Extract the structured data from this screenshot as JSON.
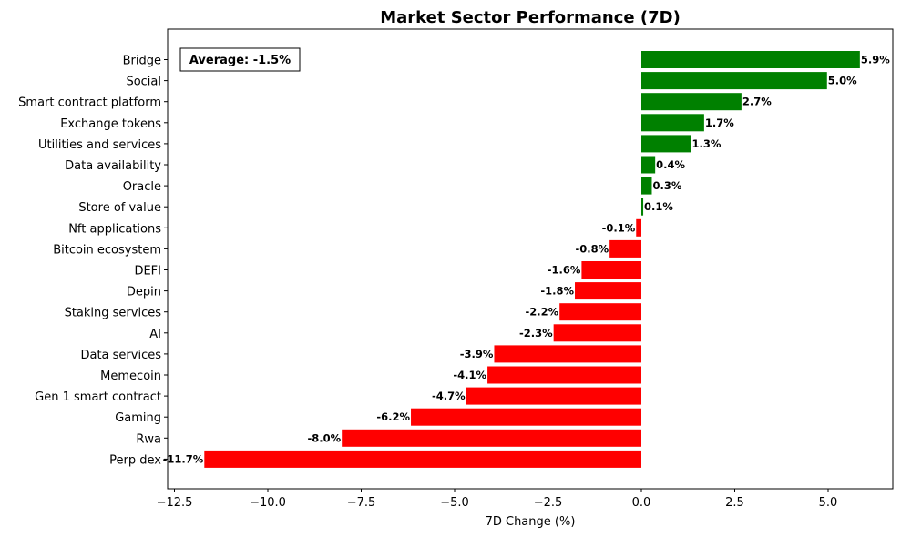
{
  "chart_data": {
    "type": "bar",
    "orientation": "horizontal",
    "title": "Market Sector Performance (7D)",
    "xlabel": "7D Change (%)",
    "ylabel": "",
    "annotation": "Average: -1.5%",
    "xlim": [
      -12.5,
      6.8
    ],
    "xticks": [
      -12.5,
      -10.0,
      -7.5,
      -5.0,
      -2.5,
      0.0,
      2.5,
      5.0
    ],
    "xtick_labels": [
      "−12.5",
      "−10.0",
      "−7.5",
      "−5.0",
      "−2.5",
      "0.0",
      "2.5",
      "5.0"
    ],
    "grid": false,
    "positive_color": "#008000",
    "negative_color": "#ff0000",
    "categories": [
      "Bridge",
      "Social",
      "Smart contract platform",
      "Exchange tokens",
      "Utilities and services",
      "Data availability",
      "Oracle",
      "Store of value",
      "Nft applications",
      "Bitcoin ecosystem",
      "DEFI",
      "Depin",
      "Staking services",
      "AI",
      "Data services",
      "Memecoin",
      "Gen 1 smart contract",
      "Gaming",
      "Rwa",
      "Perp dex"
    ],
    "values": [
      5.85,
      4.97,
      2.68,
      1.68,
      1.33,
      0.37,
      0.28,
      0.05,
      -0.14,
      -0.85,
      -1.6,
      -1.78,
      -2.19,
      -2.35,
      -3.94,
      -4.12,
      -4.69,
      -6.17,
      -8.02,
      -11.7
    ],
    "data_labels": [
      "5.9%",
      "5.0%",
      "2.7%",
      "1.7%",
      "1.3%",
      "0.4%",
      "0.3%",
      "0.1%",
      "-0.1%",
      "-0.8%",
      "-1.6%",
      "-1.8%",
      "-2.2%",
      "-2.3%",
      "-3.9%",
      "-4.1%",
      "-4.7%",
      "-6.2%",
      "-8.0%",
      "-11.7%"
    ]
  }
}
